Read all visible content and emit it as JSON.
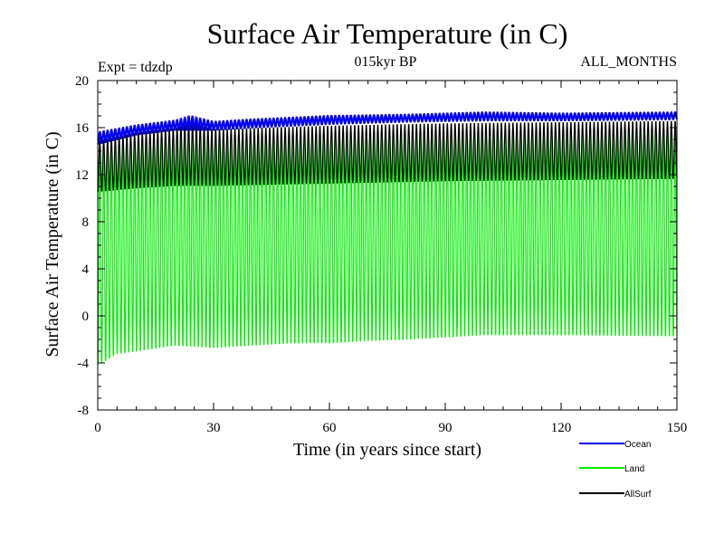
{
  "chart_data": {
    "type": "line",
    "title": "Surface Air Temperature (in C)",
    "subtitle_left": "Expt = tdzdp",
    "subtitle_center": "015kyr BP",
    "subtitle_right": "ALL_MONTHS",
    "xlabel": "Time (in years since start)",
    "ylabel": "Surface Air Temperature (in C)",
    "xlim": [
      0,
      150
    ],
    "ylim": [
      -8,
      20
    ],
    "xticks": [
      0,
      30,
      60,
      90,
      120,
      150
    ],
    "yticks": [
      -8,
      -4,
      0,
      4,
      8,
      12,
      16,
      20
    ],
    "grid": false,
    "legend_position": "bottom-right",
    "series": [
      {
        "name": "Ocean",
        "color": "#0000ee",
        "seasonal": true,
        "max_at_years": [
          [
            0,
            15.6
          ],
          [
            10,
            16.2
          ],
          [
            20,
            16.6
          ],
          [
            24,
            17.0
          ],
          [
            30,
            16.5
          ],
          [
            40,
            16.7
          ],
          [
            60,
            17.0
          ],
          [
            80,
            17.1
          ],
          [
            100,
            17.3
          ],
          [
            120,
            17.2
          ],
          [
            150,
            17.3
          ]
        ],
        "min_at_years": [
          [
            0,
            14.6
          ],
          [
            10,
            15.4
          ],
          [
            20,
            15.8
          ],
          [
            30,
            15.8
          ],
          [
            40,
            16.0
          ],
          [
            60,
            16.3
          ],
          [
            80,
            16.5
          ],
          [
            100,
            16.6
          ],
          [
            120,
            16.6
          ],
          [
            150,
            16.7
          ]
        ]
      },
      {
        "name": "Land",
        "color": "#00ee00",
        "seasonal": true,
        "max_at_years": [
          [
            0,
            14.0
          ],
          [
            5,
            15.0
          ],
          [
            10,
            15.5
          ],
          [
            20,
            15.8
          ],
          [
            30,
            15.6
          ],
          [
            60,
            15.9
          ],
          [
            90,
            16.0
          ],
          [
            120,
            16.0
          ],
          [
            150,
            16.2
          ]
        ],
        "min_at_years": [
          [
            0,
            -4.5
          ],
          [
            5,
            -3.5
          ],
          [
            10,
            -3.3
          ],
          [
            20,
            -2.8
          ],
          [
            30,
            -3.0
          ],
          [
            40,
            -2.8
          ],
          [
            50,
            -2.6
          ],
          [
            60,
            -2.6
          ],
          [
            70,
            -2.4
          ],
          [
            80,
            -2.3
          ],
          [
            90,
            -2.1
          ],
          [
            100,
            -1.9
          ],
          [
            120,
            -1.9
          ],
          [
            150,
            -2.0
          ]
        ]
      },
      {
        "name": "AllSurf",
        "color": "#000000",
        "seasonal": true,
        "max_at_years": [
          [
            0,
            14.9
          ],
          [
            10,
            15.6
          ],
          [
            20,
            16.0
          ],
          [
            24,
            16.4
          ],
          [
            30,
            15.9
          ],
          [
            60,
            16.2
          ],
          [
            90,
            16.4
          ],
          [
            120,
            16.5
          ],
          [
            150,
            16.6
          ]
        ],
        "min_at_years": [
          [
            0,
            10.5
          ],
          [
            10,
            10.8
          ],
          [
            20,
            11.0
          ],
          [
            30,
            11.0
          ],
          [
            60,
            11.2
          ],
          [
            90,
            11.4
          ],
          [
            120,
            11.5
          ],
          [
            150,
            11.6
          ]
        ]
      }
    ]
  }
}
